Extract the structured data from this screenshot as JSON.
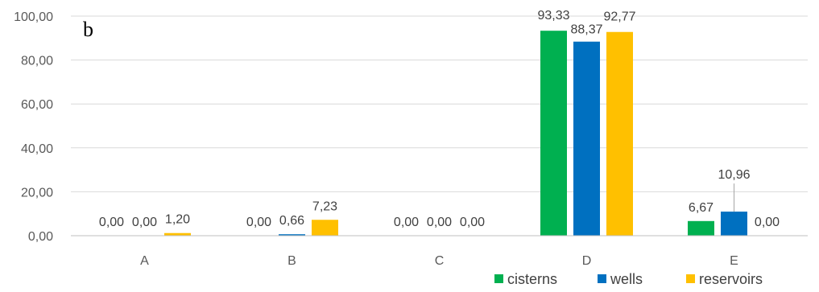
{
  "chart_data": {
    "type": "bar",
    "panel_label": "b",
    "categories": [
      "A",
      "B",
      "C",
      "D",
      "E"
    ],
    "series": [
      {
        "name": "cisterns",
        "color": "#00B050",
        "values": [
          0.0,
          0.0,
          0.0,
          93.33,
          6.67
        ],
        "labels": [
          "0,00",
          "0,00",
          "0,00",
          "93,33",
          "6,67"
        ]
      },
      {
        "name": "wells",
        "color": "#0070C0",
        "values": [
          0.0,
          0.66,
          0.0,
          88.37,
          10.96
        ],
        "labels": [
          "0,00",
          "0,66",
          "0,00",
          "88,37",
          "10,96"
        ]
      },
      {
        "name": "reservoirs",
        "color": "#FFC000",
        "values": [
          1.2,
          7.23,
          0.0,
          92.77,
          0.0
        ],
        "labels": [
          "1,20",
          "7,23",
          "0,00",
          "92,77",
          "0,00"
        ]
      }
    ],
    "ylim": [
      0,
      100
    ],
    "yticks": [
      0,
      20,
      40,
      60,
      80,
      100
    ],
    "ytick_labels": [
      "0,00",
      "20,00",
      "40,00",
      "60,00",
      "80,00",
      "100,00"
    ],
    "gridlines": true,
    "legend_position": "bottom-right",
    "xlabel": "",
    "ylabel": ""
  }
}
